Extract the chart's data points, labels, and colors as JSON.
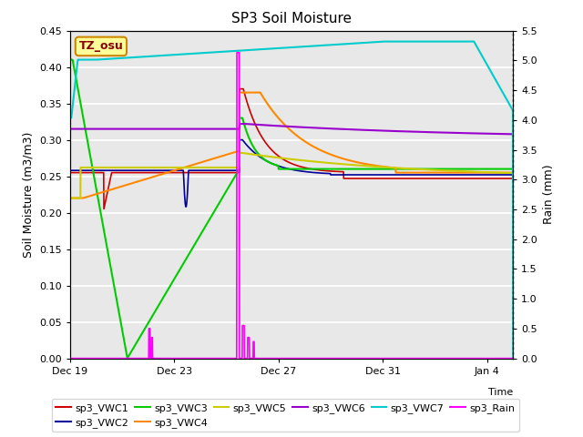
{
  "title": "SP3 Soil Moisture",
  "xlabel": "Time",
  "ylabel_left": "Soil Moisture (m3/m3)",
  "ylabel_right": "Rain (mm)",
  "xlim": [
    0,
    17
  ],
  "ylim_left": [
    0,
    0.45
  ],
  "ylim_right": [
    0,
    5.5
  ],
  "xtick_positions": [
    0,
    4,
    8,
    12,
    16
  ],
  "xtick_labels": [
    "Dec 19",
    "Dec 23",
    "Dec 27",
    "Dec 31",
    "Jan 4"
  ],
  "ytick_left": [
    0.0,
    0.05,
    0.1,
    0.15,
    0.2,
    0.25,
    0.3,
    0.35,
    0.4,
    0.45
  ],
  "ytick_right": [
    0.0,
    0.5,
    1.0,
    1.5,
    2.0,
    2.5,
    3.0,
    3.5,
    4.0,
    4.5,
    5.0,
    5.5
  ],
  "background_color": "#e8e8e8",
  "tz_label": "TZ_osu",
  "series": {
    "sp3_VWC1": {
      "color": "#cc0000",
      "linewidth": 1.2
    },
    "sp3_VWC2": {
      "color": "#000099",
      "linewidth": 1.2
    },
    "sp3_VWC3": {
      "color": "#00cc00",
      "linewidth": 1.5
    },
    "sp3_VWC4": {
      "color": "#ff8800",
      "linewidth": 1.5
    },
    "sp3_VWC5": {
      "color": "#cccc00",
      "linewidth": 1.5
    },
    "sp3_VWC6": {
      "color": "#9900cc",
      "linewidth": 1.5
    },
    "sp3_VWC7": {
      "color": "#00cccc",
      "linewidth": 1.5
    },
    "sp3_Rain": {
      "color": "#ff00ff",
      "linewidth": 1.2
    }
  }
}
